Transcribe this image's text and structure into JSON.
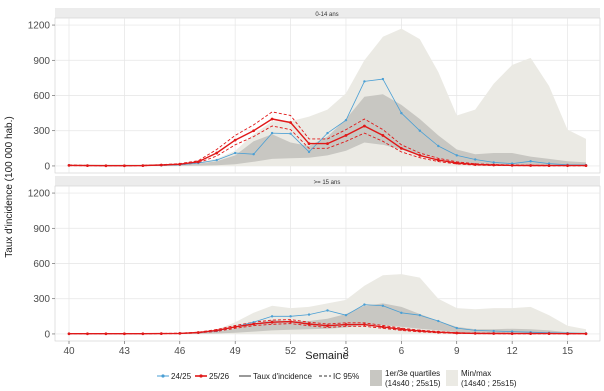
{
  "chart_data": {
    "type": "line",
    "ylabel": "Taux d'incidence (100 000 hab.)",
    "xlabel": "Semaine",
    "x_ticks": [
      "40",
      "43",
      "46",
      "49",
      "52",
      "3",
      "6",
      "9",
      "12",
      "15"
    ],
    "x_count": 29,
    "ylim": [
      -60,
      1260
    ],
    "y_ticks": [
      0,
      300,
      600,
      900,
      1200
    ],
    "y_tick_labels": [
      "0",
      "300",
      "600",
      "900",
      "1200"
    ],
    "grid": true,
    "legend_position": "bottom",
    "legend": {
      "s1": "24/25",
      "s2": "25/26",
      "s3": "Taux d'incidence",
      "s4": "IC 95%",
      "band1_line1": "1er/3e quartiles",
      "band1_line2": "(14s40 ; 25s15)",
      "band2_line1": "Min/max",
      "band2_line2": "(14s40 ; 25s15)"
    },
    "colors": {
      "s2425": "#4a9fd4",
      "s2526": "#e01818",
      "quartile_band": "#c8c7c2",
      "minmax_band": "#ebeae4",
      "strip": "#ececec",
      "grid": "#e5e5e5"
    },
    "panels": [
      {
        "strip_label": "0-14 ans",
        "minmax_upper": [
          15,
          15,
          15,
          15,
          15,
          15,
          20,
          30,
          60,
          130,
          270,
          380,
          380,
          420,
          480,
          620,
          900,
          1100,
          1170,
          1080,
          800,
          430,
          480,
          700,
          860,
          920,
          680,
          310,
          230
        ],
        "minmax_lower": [
          0,
          0,
          0,
          0,
          0,
          0,
          0,
          0,
          0,
          0,
          0,
          0,
          0,
          0,
          0,
          0,
          0,
          0,
          0,
          0,
          0,
          0,
          0,
          0,
          0,
          0,
          0,
          0,
          0
        ],
        "quartile_upper": [
          3,
          3,
          4,
          4,
          5,
          8,
          12,
          20,
          40,
          90,
          210,
          270,
          200,
          170,
          250,
          400,
          590,
          610,
          520,
          400,
          260,
          140,
          100,
          110,
          110,
          80,
          60,
          40,
          30
        ],
        "quartile_lower": [
          0,
          0,
          0,
          0,
          0,
          0,
          1,
          3,
          6,
          15,
          35,
          60,
          65,
          70,
          90,
          130,
          200,
          180,
          140,
          100,
          60,
          30,
          20,
          15,
          12,
          10,
          8,
          6,
          5
        ],
        "series_2425": [
          5,
          3,
          2,
          2,
          3,
          5,
          10,
          25,
          50,
          110,
          100,
          280,
          275,
          120,
          280,
          390,
          720,
          740,
          450,
          300,
          170,
          90,
          55,
          30,
          20,
          40,
          20,
          10,
          8
        ],
        "series_2526": [
          5,
          3,
          2,
          2,
          3,
          8,
          15,
          35,
          110,
          220,
          300,
          400,
          370,
          190,
          190,
          260,
          340,
          260,
          150,
          90,
          50,
          25,
          12,
          8,
          5,
          4,
          3,
          3,
          3
        ],
        "ci_2526_upper": [
          8,
          5,
          4,
          4,
          5,
          11,
          20,
          45,
          140,
          260,
          350,
          460,
          430,
          230,
          230,
          310,
          400,
          310,
          180,
          110,
          65,
          35,
          18,
          12,
          8,
          6,
          5,
          5,
          5
        ],
        "ci_2526_lower": [
          3,
          2,
          1,
          1,
          2,
          5,
          11,
          26,
          85,
          180,
          250,
          340,
          310,
          150,
          150,
          210,
          280,
          210,
          120,
          70,
          37,
          17,
          7,
          4,
          3,
          2,
          1,
          1,
          1
        ]
      },
      {
        "strip_label": ">= 15 ans",
        "minmax_upper": [
          5,
          5,
          5,
          5,
          5,
          5,
          8,
          15,
          35,
          100,
          180,
          240,
          220,
          230,
          260,
          290,
          410,
          500,
          510,
          480,
          300,
          220,
          210,
          220,
          220,
          230,
          160,
          70,
          40
        ],
        "minmax_lower": [
          0,
          0,
          0,
          0,
          0,
          0,
          0,
          0,
          0,
          0,
          0,
          0,
          0,
          0,
          0,
          0,
          0,
          0,
          0,
          0,
          0,
          0,
          0,
          0,
          0,
          0,
          0,
          0,
          0
        ],
        "quartile_upper": [
          2,
          2,
          2,
          2,
          2,
          3,
          5,
          8,
          18,
          45,
          90,
          120,
          110,
          110,
          130,
          170,
          240,
          260,
          230,
          170,
          110,
          60,
          40,
          40,
          45,
          40,
          30,
          15,
          10
        ],
        "quartile_lower": [
          0,
          0,
          0,
          0,
          0,
          0,
          1,
          2,
          4,
          10,
          20,
          30,
          35,
          40,
          45,
          55,
          80,
          75,
          60,
          45,
          30,
          15,
          10,
          8,
          8,
          6,
          5,
          3,
          2
        ],
        "series_2425": [
          2,
          2,
          2,
          2,
          2,
          3,
          5,
          10,
          25,
          60,
          100,
          150,
          150,
          165,
          200,
          160,
          250,
          240,
          180,
          160,
          110,
          50,
          30,
          25,
          20,
          15,
          10,
          8,
          5
        ],
        "series_2526": [
          2,
          2,
          2,
          2,
          2,
          3,
          5,
          12,
          30,
          60,
          85,
          100,
          105,
          85,
          70,
          80,
          80,
          60,
          40,
          25,
          15,
          8,
          5,
          4,
          3,
          3,
          3,
          2,
          2
        ],
        "ci_2526_upper": [
          3,
          3,
          3,
          3,
          3,
          4,
          7,
          15,
          38,
          72,
          100,
          118,
          122,
          100,
          85,
          95,
          95,
          72,
          50,
          32,
          20,
          11,
          7,
          6,
          5,
          5,
          4,
          3,
          3
        ],
        "ci_2526_lower": [
          1,
          1,
          1,
          1,
          1,
          2,
          3,
          9,
          22,
          48,
          70,
          82,
          88,
          70,
          55,
          65,
          65,
          48,
          30,
          18,
          10,
          5,
          3,
          2,
          1,
          1,
          1,
          1,
          1
        ]
      }
    ]
  }
}
